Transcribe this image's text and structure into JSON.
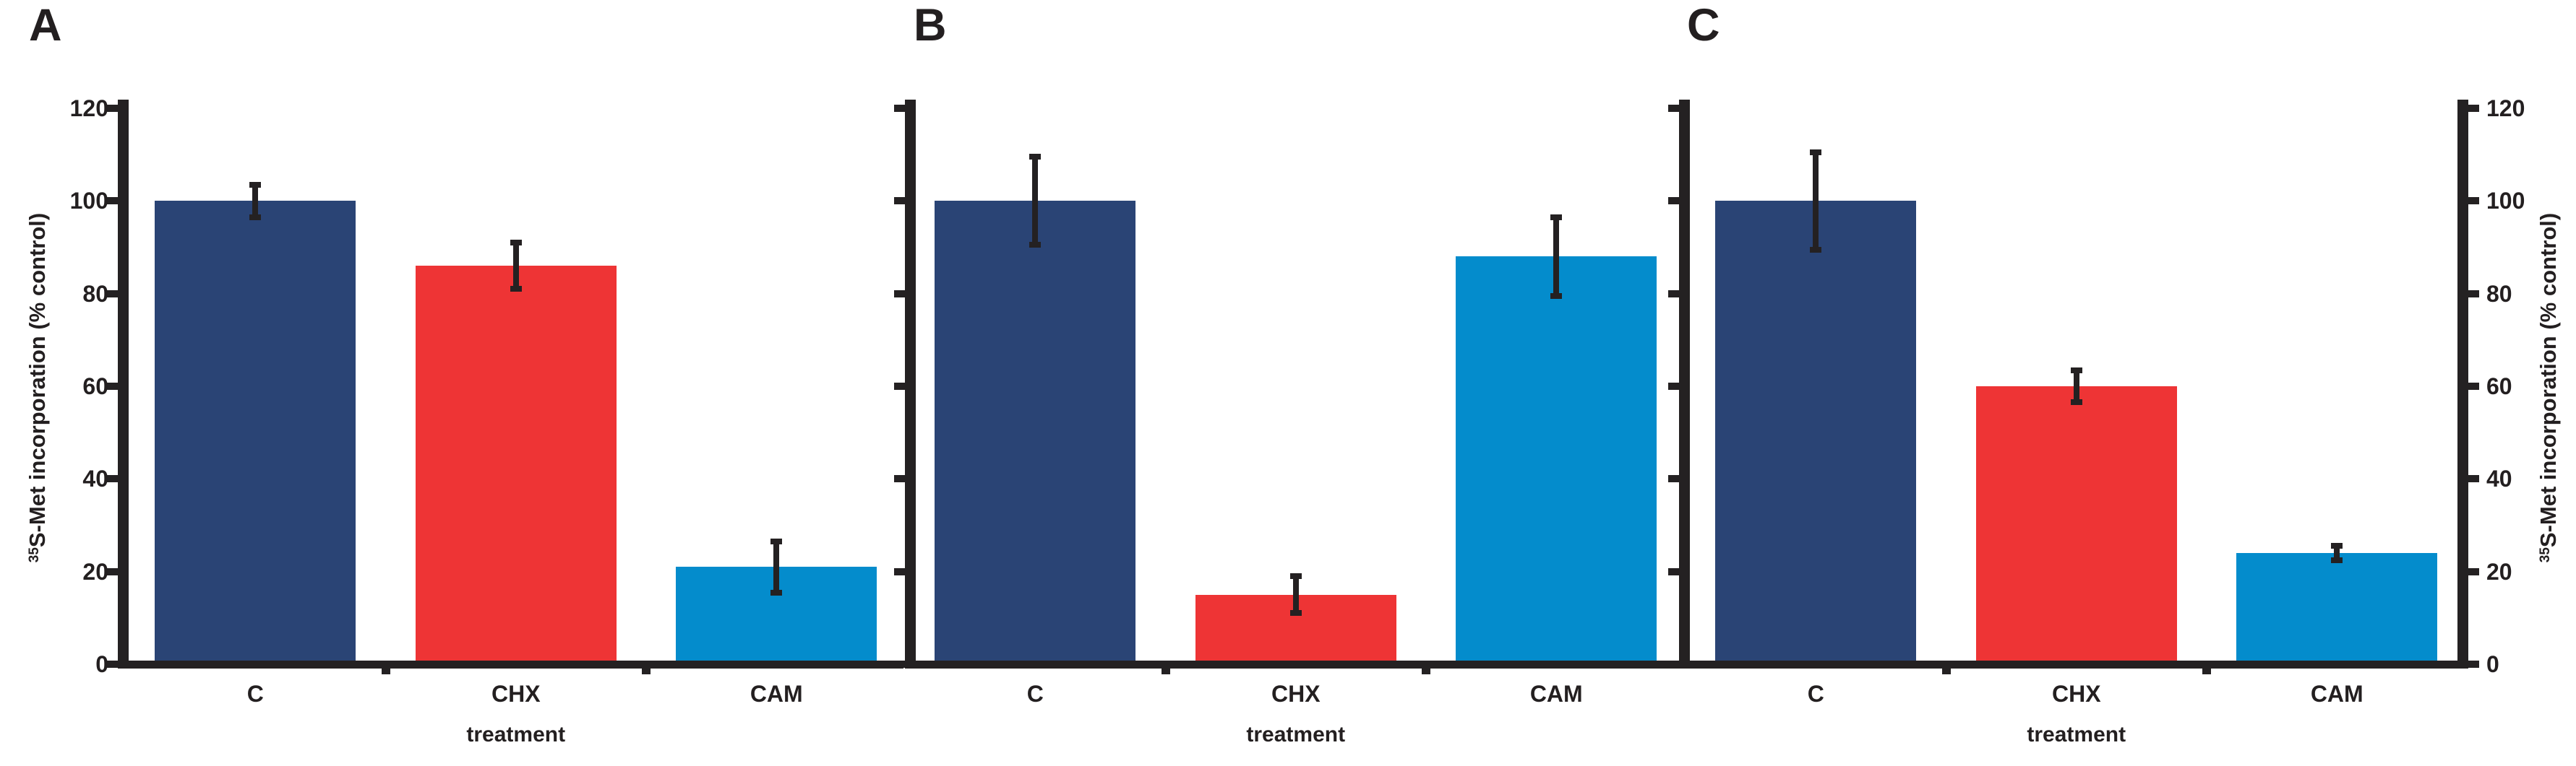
{
  "figure": {
    "background": "#ffffff",
    "ink_color": "#242122",
    "text_color": "#231f20",
    "panel_letters": [
      "A",
      "B",
      "C"
    ],
    "ylabel_sup": "35",
    "ylabel_rest": "S-Met incorporation (% control)",
    "xlabel": "treatment"
  },
  "chart_data": [
    {
      "panel": "A",
      "type": "bar",
      "categories": [
        "C",
        "CHX",
        "CAM"
      ],
      "values": [
        100,
        86,
        21
      ],
      "errors": [
        3.5,
        5,
        5.5
      ],
      "bar_colors": [
        "#2a4475",
        "#ee3435",
        "#048ccc"
      ],
      "xlabel": "treatment",
      "ylabel": "35S-Met incorporation (% control)",
      "yticks": [
        0,
        20,
        40,
        60,
        80,
        100,
        120
      ],
      "ylim": [
        0,
        120
      ],
      "grid": false,
      "legend": "none",
      "y_axis_side": "left",
      "y_tick_labels_visible": true
    },
    {
      "panel": "B",
      "type": "bar",
      "categories": [
        "C",
        "CHX",
        "CAM"
      ],
      "values": [
        100,
        15,
        88
      ],
      "errors": [
        9.5,
        4,
        8.5
      ],
      "bar_colors": [
        "#2a4475",
        "#ee3435",
        "#048ccc"
      ],
      "xlabel": "treatment",
      "ylabel": "",
      "yticks": [
        0,
        20,
        40,
        60,
        80,
        100,
        120
      ],
      "ylim": [
        0,
        120
      ],
      "grid": false,
      "legend": "none",
      "y_axis_side": "left",
      "y_tick_labels_visible": false
    },
    {
      "panel": "C",
      "type": "bar",
      "categories": [
        "C",
        "CHX",
        "CAM"
      ],
      "values": [
        100,
        60,
        24
      ],
      "errors": [
        10.5,
        3.5,
        1.6
      ],
      "bar_colors": [
        "#2a4475",
        "#ee3435",
        "#048ccc"
      ],
      "xlabel": "treatment",
      "ylabel": "35S-Met incorporation (% control)",
      "yticks": [
        0,
        20,
        40,
        60,
        80,
        100,
        120
      ],
      "ylim": [
        0,
        120
      ],
      "grid": false,
      "legend": "none",
      "y_axis_side": "right",
      "y_tick_labels_visible": true
    }
  ]
}
